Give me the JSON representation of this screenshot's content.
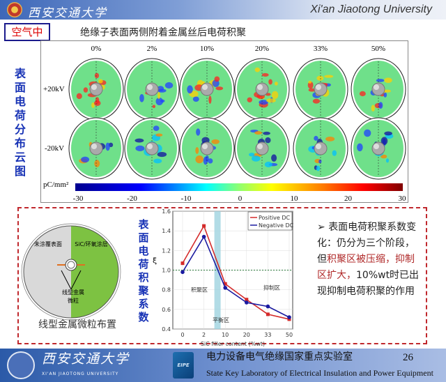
{
  "header": {
    "university_cn": "西安交通大学",
    "university_en": "Xi'an Jiaotong University"
  },
  "tag": "空气中",
  "title": "绝缘子表面两侧附着金属丝后电荷积聚",
  "top_panel": {
    "side_label": "表面电荷分布云图",
    "columns": [
      "0%",
      "2%",
      "10%",
      "20%",
      "33%",
      "50%"
    ],
    "rows": [
      "+20kV",
      "-20kV"
    ],
    "colorbar": {
      "unit": "pC/mm²",
      "ticks": [
        "-30",
        "-20",
        "-10",
        "0",
        "10",
        "20",
        "30"
      ],
      "range": [
        -30,
        30
      ],
      "colormap": "jet"
    }
  },
  "diagram": {
    "left_label": "未涂覆表面",
    "right_label": "SiC/环氧涂层",
    "particle_label": "线型金属微粒",
    "caption": "线型金属微粒布置",
    "left_color": "#d9d9d9",
    "right_color": "#7dc242"
  },
  "chart_side_label": "表面电荷积聚系数",
  "chart_data": {
    "type": "line",
    "categories": [
      "0",
      "2",
      "10",
      "20",
      "33",
      "50"
    ],
    "xlabel": "SiC filler content (%wt)",
    "ylabel": "ξ",
    "ylim": [
      0.4,
      1.6
    ],
    "yticks": [
      "0.4",
      "0.6",
      "0.8",
      "1.0",
      "1.2",
      "1.4",
      "1.6"
    ],
    "reference_line": 1.0,
    "legend": "top-right",
    "grid": true,
    "series": [
      {
        "name": "Positive DC",
        "color": "#d42a2a",
        "values": [
          1.07,
          1.45,
          0.86,
          0.7,
          0.55,
          0.5
        ]
      },
      {
        "name": "Negative DC",
        "color": "#1a1aa0",
        "values": [
          0.98,
          1.34,
          0.82,
          0.67,
          0.63,
          0.52
        ]
      }
    ],
    "regions": [
      {
        "label": "积聚区"
      },
      {
        "label": "平衡区"
      },
      {
        "label": "抑制区"
      }
    ]
  },
  "bullet": {
    "part1": "表面电荷积聚系数变化：仍分为三个阶段，但",
    "highlight": "积聚区被压缩，抑制区扩大，",
    "part2": "10%wt时已出现抑制电荷积聚的作用"
  },
  "footer": {
    "university_cn": "西安交通大学",
    "university_en": "XI'AN JIAOTONG UNIVERSITY",
    "lab_cn": "电力设备电气绝缘国家重点实验室",
    "lab_en": "State Key Laboratory of Electrical Insulation and Power Equipment",
    "lab_logo_text": "EIPE",
    "page": "26"
  }
}
